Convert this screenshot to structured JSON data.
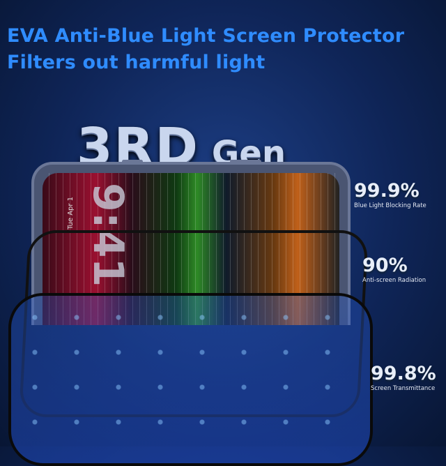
{
  "headline": {
    "line1": "EVA Anti-Blue Light Screen Protector",
    "line2": "Filters out harmful light"
  },
  "generation": {
    "number": "3RD",
    "word": "Gen"
  },
  "phone_screen": {
    "time": "9:41",
    "date": "Tue Apr 1"
  },
  "stats": [
    {
      "value": "99.9%",
      "label": "Blue Light Blocking Rate"
    },
    {
      "value": "90%",
      "label": "Anti-screen Radiation"
    },
    {
      "value": "99.8%",
      "label": "Screen Transmittance"
    }
  ],
  "colors": {
    "headline": "#2f8cff",
    "background": "#0f2558"
  }
}
